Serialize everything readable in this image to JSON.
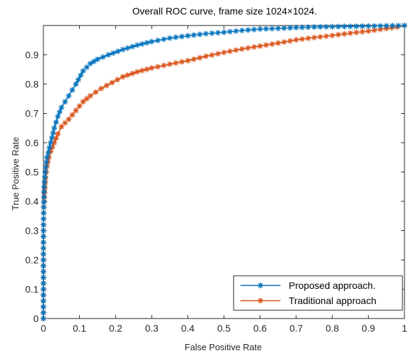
{
  "chart_data": {
    "type": "line",
    "title": "Overall ROC curve, frame size 1024×1024.",
    "xlabel": "False Positive Rate",
    "ylabel": "True Positive Rate",
    "xlim": [
      0,
      1
    ],
    "ylim": [
      0,
      1
    ],
    "xticks": [
      "0",
      "0.1",
      "0.2",
      "0.3",
      "0.4",
      "0.5",
      "0.6",
      "0.7",
      "0.8",
      "0.9",
      "1"
    ],
    "yticks": [
      "0",
      "0.1",
      "0.2",
      "0.3",
      "0.4",
      "0.5",
      "0.6",
      "0.7",
      "0.8",
      "0.9"
    ],
    "grid": false,
    "legend_position": "bottom-right",
    "marker": "asterisk",
    "series": [
      {
        "name": "Proposed approach.",
        "color": "#0072BD",
        "points": [
          [
            0,
            0
          ],
          [
            0,
            0.1
          ],
          [
            0,
            0.2
          ],
          [
            0,
            0.3
          ],
          [
            0.001,
            0.38
          ],
          [
            0.002,
            0.45
          ],
          [
            0.005,
            0.5
          ],
          [
            0.01,
            0.55
          ],
          [
            0.02,
            0.6
          ],
          [
            0.03,
            0.65
          ],
          [
            0.04,
            0.69
          ],
          [
            0.05,
            0.72
          ],
          [
            0.07,
            0.76
          ],
          [
            0.09,
            0.8
          ],
          [
            0.11,
            0.845
          ],
          [
            0.13,
            0.87
          ],
          [
            0.15,
            0.885
          ],
          [
            0.18,
            0.9
          ],
          [
            0.22,
            0.918
          ],
          [
            0.26,
            0.933
          ],
          [
            0.3,
            0.945
          ],
          [
            0.35,
            0.957
          ],
          [
            0.4,
            0.965
          ],
          [
            0.45,
            0.972
          ],
          [
            0.5,
            0.977
          ],
          [
            0.55,
            0.983
          ],
          [
            0.6,
            0.988
          ],
          [
            0.65,
            0.99
          ],
          [
            0.7,
            0.993
          ],
          [
            0.75,
            0.995
          ],
          [
            0.8,
            0.996
          ],
          [
            0.85,
            0.997
          ],
          [
            0.9,
            0.998
          ],
          [
            0.95,
            0.999
          ],
          [
            1,
            1
          ]
        ]
      },
      {
        "name": "Traditional approach",
        "color": "#D95319",
        "points": [
          [
            0,
            0
          ],
          [
            0,
            0.1
          ],
          [
            0,
            0.2
          ],
          [
            0,
            0.3
          ],
          [
            0.001,
            0.38
          ],
          [
            0.003,
            0.43
          ],
          [
            0.006,
            0.48
          ],
          [
            0.01,
            0.52
          ],
          [
            0.015,
            0.55
          ],
          [
            0.02,
            0.57
          ],
          [
            0.03,
            0.6
          ],
          [
            0.04,
            0.63
          ],
          [
            0.05,
            0.655
          ],
          [
            0.07,
            0.68
          ],
          [
            0.09,
            0.71
          ],
          [
            0.11,
            0.74
          ],
          [
            0.13,
            0.76
          ],
          [
            0.16,
            0.785
          ],
          [
            0.19,
            0.805
          ],
          [
            0.22,
            0.825
          ],
          [
            0.26,
            0.842
          ],
          [
            0.3,
            0.855
          ],
          [
            0.35,
            0.868
          ],
          [
            0.4,
            0.88
          ],
          [
            0.45,
            0.895
          ],
          [
            0.5,
            0.908
          ],
          [
            0.55,
            0.92
          ],
          [
            0.6,
            0.93
          ],
          [
            0.65,
            0.94
          ],
          [
            0.7,
            0.951
          ],
          [
            0.75,
            0.959
          ],
          [
            0.8,
            0.966
          ],
          [
            0.85,
            0.974
          ],
          [
            0.9,
            0.981
          ],
          [
            0.95,
            0.99
          ],
          [
            0.98,
            0.995
          ],
          [
            1,
            1
          ]
        ]
      }
    ]
  }
}
